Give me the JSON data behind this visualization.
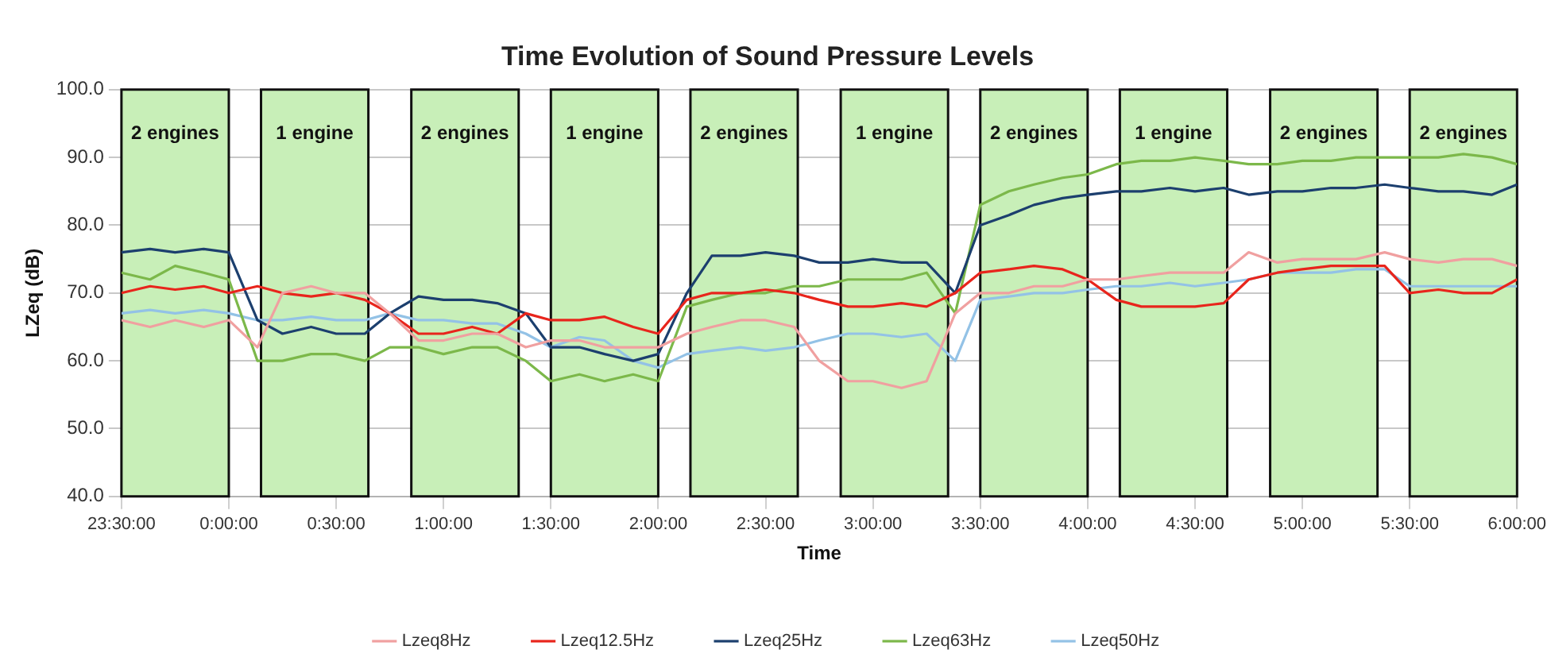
{
  "chart_data": {
    "type": "line",
    "title": "Time Evolution of Sound Pressure Levels",
    "xlabel": "Time",
    "ylabel": "LZeq (dB)",
    "x": [
      "2000-01-01T23:30",
      "2000-01-01T23:38",
      "2000-01-01T23:45",
      "2000-01-01T23:53",
      "2000-01-02T00:00",
      "2000-01-02T00:08",
      "2000-01-02T00:15",
      "2000-01-02T00:23",
      "2000-01-02T00:30",
      "2000-01-02T00:38",
      "2000-01-02T00:45",
      "2000-01-02T00:53",
      "2000-01-02T01:00",
      "2000-01-02T01:08",
      "2000-01-02T01:15",
      "2000-01-02T01:23",
      "2000-01-02T01:30",
      "2000-01-02T01:38",
      "2000-01-02T01:45",
      "2000-01-02T01:53",
      "2000-01-02T02:00",
      "2000-01-02T02:08",
      "2000-01-02T02:15",
      "2000-01-02T02:23",
      "2000-01-02T02:30",
      "2000-01-02T02:38",
      "2000-01-02T02:45",
      "2000-01-02T02:53",
      "2000-01-02T03:00",
      "2000-01-02T03:08",
      "2000-01-02T03:15",
      "2000-01-02T03:23",
      "2000-01-02T03:30",
      "2000-01-02T03:38",
      "2000-01-02T03:45",
      "2000-01-02T03:53",
      "2000-01-02T04:00",
      "2000-01-02T04:08",
      "2000-01-02T04:15",
      "2000-01-02T04:23",
      "2000-01-02T04:30",
      "2000-01-02T04:38",
      "2000-01-02T04:45",
      "2000-01-02T04:53",
      "2000-01-02T05:00",
      "2000-01-02T05:08",
      "2000-01-02T05:15",
      "2000-01-02T05:23",
      "2000-01-02T05:30",
      "2000-01-02T05:38",
      "2000-01-02T05:45",
      "2000-01-02T05:53",
      "2000-01-02T06:00"
    ],
    "series": [
      {
        "name": "Lzeq8Hz",
        "color": "#f0a0a0",
        "values": [
          66,
          65,
          66,
          65,
          66,
          62,
          70,
          71,
          70,
          70,
          67,
          63,
          63,
          64,
          64,
          62,
          63,
          63,
          62,
          62,
          62,
          64,
          65,
          66,
          66,
          65,
          60,
          57,
          57,
          56,
          57,
          67,
          70,
          70,
          71,
          71,
          72,
          72,
          72.5,
          73,
          73,
          73,
          76,
          74.5,
          75,
          75,
          75,
          76,
          75,
          74.5,
          75,
          75,
          74
        ]
      },
      {
        "name": "Lzeq12.5Hz",
        "color": "#e8251c",
        "values": [
          70,
          71,
          70.5,
          71,
          70,
          71,
          70,
          69.5,
          70,
          69,
          67,
          64,
          64,
          65,
          64,
          67,
          66,
          66,
          66.5,
          65,
          64,
          69,
          70,
          70,
          70.5,
          70,
          69,
          68,
          68,
          68.5,
          68,
          70,
          73,
          73.5,
          74,
          73.5,
          72,
          69,
          68,
          68,
          68,
          68.5,
          72,
          73,
          73.5,
          74,
          74,
          74,
          70,
          70.5,
          70,
          70,
          72
        ]
      },
      {
        "name": "Lzeq25Hz",
        "color": "#1c3f6e",
        "values": [
          76,
          76.5,
          76,
          76.5,
          76,
          66,
          64,
          65,
          64,
          64,
          67,
          69.5,
          69,
          69,
          68.5,
          67,
          62,
          62,
          61,
          60,
          61,
          70,
          75.5,
          75.5,
          76,
          75.5,
          74.5,
          74.5,
          75,
          74.5,
          74.5,
          70,
          80,
          81.5,
          83,
          84,
          84.5,
          85,
          85,
          85.5,
          85,
          85.5,
          84.5,
          85,
          85,
          85.5,
          85.5,
          86,
          85.5,
          85,
          85,
          84.5,
          86
        ]
      },
      {
        "name": "Lzeq63Hz",
        "color": "#7cb84a",
        "values": [
          73,
          72,
          74,
          73,
          72,
          60,
          60,
          61,
          61,
          60,
          62,
          62,
          61,
          62,
          62,
          60,
          57,
          58,
          57,
          58,
          57,
          68,
          69,
          70,
          70,
          71,
          71,
          72,
          72,
          72,
          73,
          67,
          83,
          85,
          86,
          87,
          87.5,
          89,
          89.5,
          89.5,
          90,
          89.5,
          89,
          89,
          89.5,
          89.5,
          90,
          90,
          90,
          90,
          90.5,
          90,
          89
        ]
      },
      {
        "name": "Lzeq50Hz",
        "color": "#93c2e6",
        "values": [
          67,
          67.5,
          67,
          67.5,
          67,
          66,
          66,
          66.5,
          66,
          66,
          67,
          66,
          66,
          65.5,
          65.5,
          64,
          62,
          63.5,
          63,
          60,
          59,
          61,
          61.5,
          62,
          61.5,
          62,
          63,
          64,
          64,
          63.5,
          64,
          60,
          69,
          69.5,
          70,
          70,
          70.5,
          71,
          71,
          71.5,
          71,
          71.5,
          72,
          73,
          73,
          73,
          73.5,
          73.5,
          71,
          71,
          71,
          71,
          71
        ]
      }
    ],
    "xlim": [
      "2000-01-01T23:30",
      "2000-01-02T06:00"
    ],
    "xticks": [
      {
        "value": "2000-01-01T23:30",
        "label": "23:30:00"
      },
      {
        "value": "2000-01-02T00:00",
        "label": "0:00:00"
      },
      {
        "value": "2000-01-02T00:30",
        "label": "0:30:00"
      },
      {
        "value": "2000-01-02T01:00",
        "label": "1:00:00"
      },
      {
        "value": "2000-01-02T01:30",
        "label": "1:30:00"
      },
      {
        "value": "2000-01-02T02:00",
        "label": "2:00:00"
      },
      {
        "value": "2000-01-02T02:30",
        "label": "2:30:00"
      },
      {
        "value": "2000-01-02T03:00",
        "label": "3:00:00"
      },
      {
        "value": "2000-01-02T03:30",
        "label": "3:30:00"
      },
      {
        "value": "2000-01-02T04:00",
        "label": "4:00:00"
      },
      {
        "value": "2000-01-02T04:30",
        "label": "4:30:00"
      },
      {
        "value": "2000-01-02T05:00",
        "label": "5:00:00"
      },
      {
        "value": "2000-01-02T05:30",
        "label": "5:30:00"
      },
      {
        "value": "2000-01-02T06:00",
        "label": "6:00:00"
      }
    ],
    "ylim": [
      40,
      100
    ],
    "yticks": [
      {
        "value": 40,
        "label": "40.0"
      },
      {
        "value": 50,
        "label": "50.0"
      },
      {
        "value": 60,
        "label": "60.0"
      },
      {
        "value": 70,
        "label": "70.0"
      },
      {
        "value": 80,
        "label": "80.0"
      },
      {
        "value": 90,
        "label": "90.0"
      },
      {
        "value": 100,
        "label": "100.0"
      }
    ],
    "bands": [
      {
        "axis": "x",
        "from": "2000-01-01T23:30",
        "to": "2000-01-02T00:00",
        "label": "2 engines",
        "color": "#c8efb8"
      },
      {
        "axis": "x",
        "from": "2000-01-02T00:09",
        "to": "2000-01-02T00:39",
        "label": "1 engine",
        "color": "#c8efb8"
      },
      {
        "axis": "x",
        "from": "2000-01-02T00:51",
        "to": "2000-01-02T01:21",
        "label": "2 engines",
        "color": "#c8efb8"
      },
      {
        "axis": "x",
        "from": "2000-01-02T01:30",
        "to": "2000-01-02T02:00",
        "label": "1 engine",
        "color": "#c8efb8"
      },
      {
        "axis": "x",
        "from": "2000-01-02T02:09",
        "to": "2000-01-02T02:39",
        "label": "2 engines",
        "color": "#c8efb8"
      },
      {
        "axis": "x",
        "from": "2000-01-02T02:51",
        "to": "2000-01-02T03:21",
        "label": "1 engine",
        "color": "#c8efb8"
      },
      {
        "axis": "x",
        "from": "2000-01-02T03:30",
        "to": "2000-01-02T04:00",
        "label": "2 engines",
        "color": "#c8efb8"
      },
      {
        "axis": "x",
        "from": "2000-01-02T04:09",
        "to": "2000-01-02T04:39",
        "label": "1 engine",
        "color": "#c8efb8"
      },
      {
        "axis": "x",
        "from": "2000-01-02T04:51",
        "to": "2000-01-02T05:21",
        "label": "2 engines",
        "color": "#c8efb8"
      },
      {
        "axis": "x",
        "from": "2000-01-02T05:30",
        "to": "2000-01-02T06:00",
        "label": "2 engines",
        "color": "#c8efb8"
      }
    ],
    "grid": true,
    "legend": "bottom",
    "marker": "none",
    "line_style": "solid"
  }
}
